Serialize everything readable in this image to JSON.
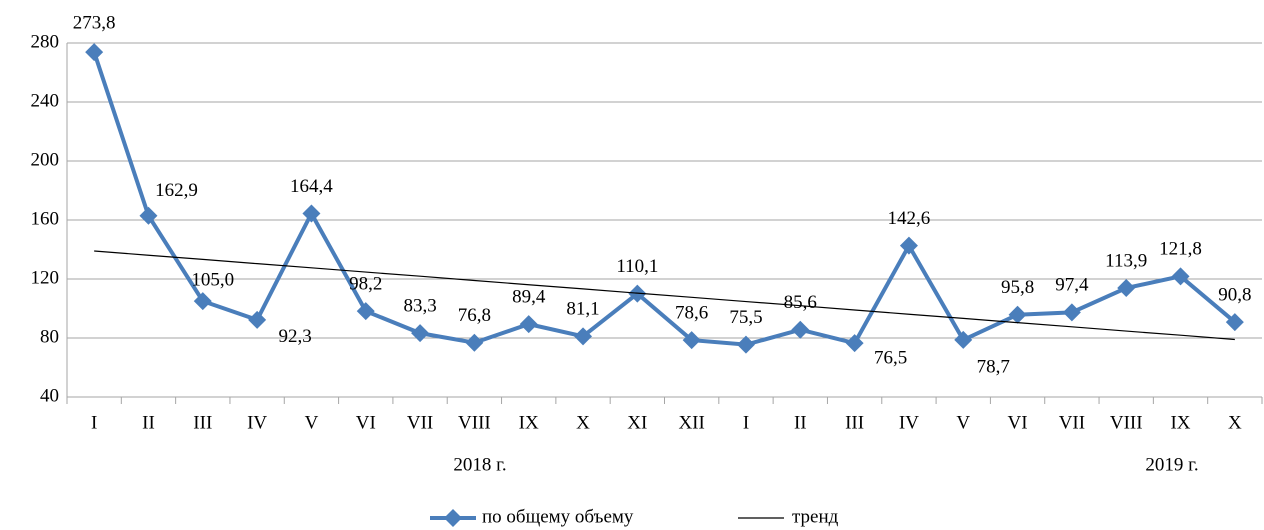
{
  "chart_data": {
    "type": "line",
    "categories": [
      "I",
      "II",
      "III",
      "IV",
      "V",
      "VI",
      "VII",
      "VIII",
      "IX",
      "X",
      "XI",
      "XII",
      "I",
      "II",
      "III",
      "IV",
      "V",
      "VI",
      "VII",
      "VIII",
      "IX",
      "X"
    ],
    "series": [
      {
        "name": "по общему объему",
        "color": "#4a7ebb",
        "marker": "diamond",
        "values": [
          273.8,
          162.9,
          105.0,
          92.3,
          164.4,
          98.2,
          83.3,
          76.8,
          89.4,
          81.1,
          110.1,
          78.6,
          75.5,
          85.6,
          76.5,
          142.6,
          78.7,
          95.8,
          97.4,
          113.9,
          121.8,
          90.8
        ],
        "value_labels": [
          "273,8",
          "162,9",
          "105,0",
          "92,3",
          "164,4",
          "98,2",
          "83,3",
          "76,8",
          "89,4",
          "81,1",
          "110,1",
          "78,6",
          "75,5",
          "85,6",
          "76,5",
          "142,6",
          "78,7",
          "95,8",
          "97,4",
          "113,9",
          "121,8",
          "90,8"
        ]
      },
      {
        "name": "тренд",
        "color": "#000000",
        "values": [
          139,
          136.1,
          133.3,
          130.4,
          127.6,
          124.7,
          121.9,
          119.0,
          116.1,
          113.3,
          110.4,
          107.6,
          104.7,
          101.9,
          99.0,
          96.1,
          93.3,
          90.4,
          87.6,
          84.7,
          81.9,
          79.0
        ]
      }
    ],
    "annotations": [
      "2018 г.",
      "2019 г."
    ],
    "ylim": [
      40,
      280
    ],
    "yticks": [
      40,
      80,
      120,
      160,
      200,
      240,
      280
    ],
    "grid": true,
    "legend": "bottom"
  }
}
